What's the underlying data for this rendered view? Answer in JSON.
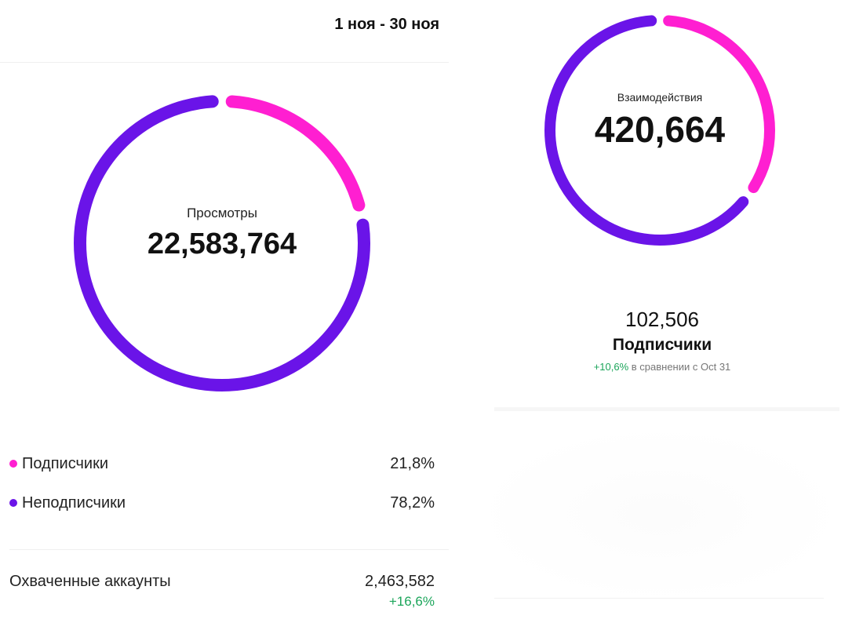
{
  "header": {
    "date_range": "1 ноя - 30 ноя"
  },
  "views_card": {
    "label": "Просмотры",
    "value": "22,583,764",
    "ring": {
      "followers_share": 0.218,
      "nonfollowers_share": 0.782,
      "followers_color": "#ff1fd1",
      "nonfollowers_color": "#6a14e8"
    },
    "legend": [
      {
        "label": "Подписчики",
        "value": "21,8%",
        "color": "#ff1fd1"
      },
      {
        "label": "Неподписчики",
        "value": "78,2%",
        "color": "#6a14e8"
      }
    ]
  },
  "reach": {
    "label": "Охваченные аккаунты",
    "value": "2,463,582",
    "change": "+16,6%"
  },
  "interactions_card": {
    "label": "Взаимодействия",
    "value": "420,664",
    "ring": {
      "followers_share": 0.35,
      "nonfollowers_share": 0.65,
      "followers_color": "#ff1fd1",
      "nonfollowers_color": "#6a14e8"
    }
  },
  "followers": {
    "value": "102,506",
    "label": "Подписчики",
    "change": "+10,6%",
    "compare_text": " в сравнении с Oct 31"
  },
  "colors": {
    "positive": "#1ba55a",
    "pink": "#ff1fd1",
    "purple": "#6a14e8"
  }
}
